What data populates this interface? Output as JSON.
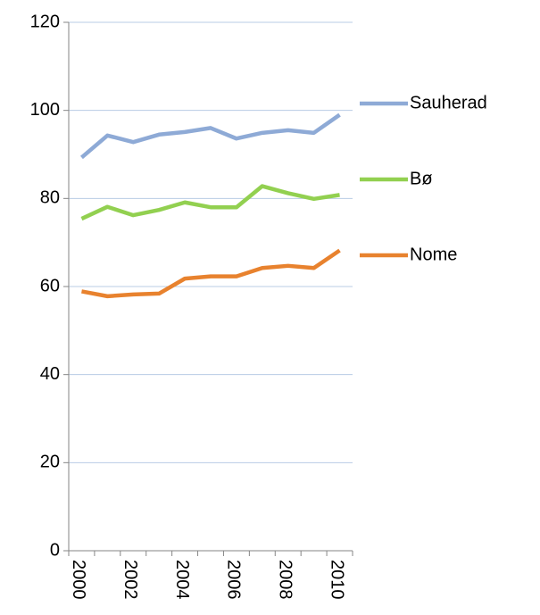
{
  "chart_data": {
    "type": "line",
    "categories": [
      "2000",
      null,
      "2002",
      null,
      "2004",
      null,
      "2006",
      null,
      "2008",
      null,
      "2010"
    ],
    "series": [
      {
        "name": "Sauherad",
        "color": "#8eaad6",
        "values": [
          89.3,
          94.3,
          92.8,
          94.5,
          95.1,
          96.0,
          93.6,
          94.9,
          95.5,
          94.9,
          99.0
        ]
      },
      {
        "name": "Bø",
        "color": "#92d050",
        "values": [
          75.4,
          78.1,
          76.2,
          77.4,
          79.1,
          78.0,
          78.0,
          82.8,
          81.2,
          79.9,
          80.8
        ]
      },
      {
        "name": "Nome",
        "color": "#e8822e",
        "values": [
          58.9,
          57.8,
          58.2,
          58.4,
          61.8,
          62.3,
          62.3,
          64.2,
          64.7,
          64.2,
          68.2
        ]
      }
    ],
    "ylim": [
      0,
      120
    ],
    "yticks": [
      0,
      20,
      40,
      60,
      80,
      100,
      120
    ],
    "grid": true,
    "legend": "right"
  }
}
